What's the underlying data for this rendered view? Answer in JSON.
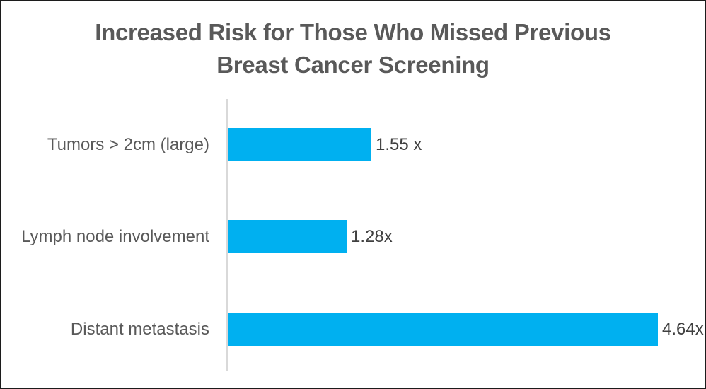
{
  "chart_data": {
    "type": "bar",
    "orientation": "horizontal",
    "title": "Increased Risk for Those Who Missed Previous Breast Cancer Screening",
    "title_lines": [
      "Increased Risk for Those Who Missed Previous",
      "Breast Cancer Screening"
    ],
    "categories": [
      "Tumors > 2cm (large)",
      "Lymph node involvement",
      "Distant metastasis"
    ],
    "values": [
      1.55,
      1.28,
      4.64
    ],
    "value_labels": [
      "1.55 x",
      "1.28x",
      "4.64x"
    ],
    "xlabel": "",
    "ylabel": "",
    "xlim": [
      0,
      4.64
    ],
    "grid": false,
    "legend": false,
    "colors": {
      "bar": "#00b0f0",
      "axis_line": "#d9d9d9",
      "title_text": "#595959",
      "category_text": "#595959",
      "value_text": "#404040",
      "frame_border": "#1c1c1c",
      "background": "#ffffff"
    }
  }
}
